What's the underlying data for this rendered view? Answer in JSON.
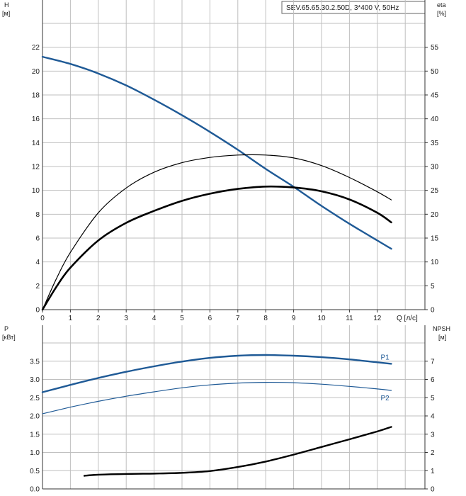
{
  "header": {
    "model_label": "SEV.65.65.30.2.50D, 3*400 V, 50Hz"
  },
  "colors": {
    "blue": "#1f5a96",
    "black": "#000000",
    "grid": "#bfbfbf",
    "axis": "#333333"
  },
  "chart_data": [
    {
      "type": "line",
      "name": "head-efficiency",
      "x_axis": {
        "label": "Q [л/с]",
        "range": [
          0,
          12.5
        ],
        "ticks": [
          0,
          1,
          2,
          3,
          4,
          5,
          6,
          7,
          8,
          9,
          10,
          11,
          12
        ]
      },
      "y_left": {
        "label": "H",
        "unit": "[м]",
        "range": [
          0,
          24
        ],
        "ticks": [
          0,
          2,
          4,
          6,
          8,
          10,
          12,
          14,
          16,
          18,
          20,
          22
        ]
      },
      "y_right": {
        "label": "eta",
        "unit": "[%]",
        "range": [
          0,
          60
        ],
        "ticks": [
          0,
          5,
          10,
          15,
          20,
          25,
          30,
          35,
          40,
          45,
          50,
          55
        ]
      },
      "grid": true,
      "series": [
        {
          "id": "H",
          "axis": "left",
          "color": "#1f5a96",
          "width": 2.4,
          "x": [
            0,
            1,
            2,
            3,
            4,
            5,
            6,
            7,
            8,
            9,
            10,
            11,
            12,
            12.5
          ],
          "y": [
            21.2,
            20.6,
            19.8,
            18.8,
            17.6,
            16.3,
            14.9,
            13.4,
            11.8,
            10.3,
            8.7,
            7.2,
            5.8,
            5.1
          ]
        },
        {
          "id": "eta-thin",
          "axis": "right",
          "color": "#000000",
          "width": 1.2,
          "x": [
            0,
            0.5,
            1,
            2,
            3,
            4,
            5,
            6,
            7,
            8,
            9,
            10,
            11,
            12,
            12.5
          ],
          "y": [
            0,
            6.5,
            12.0,
            20.3,
            25.5,
            28.8,
            30.8,
            31.9,
            32.4,
            32.4,
            31.8,
            30.2,
            27.7,
            24.7,
            23.0
          ]
        },
        {
          "id": "eta-thick",
          "axis": "right",
          "color": "#000000",
          "width": 2.6,
          "x": [
            0,
            0.5,
            1,
            2,
            3,
            4,
            5,
            6,
            7,
            8,
            9,
            10,
            11,
            12,
            12.5
          ],
          "y": [
            0,
            4.8,
            8.8,
            14.5,
            18.2,
            20.7,
            22.8,
            24.3,
            25.3,
            25.8,
            25.6,
            24.8,
            23.1,
            20.3,
            18.3
          ]
        }
      ]
    },
    {
      "type": "line",
      "name": "power-npsh",
      "x_axis": {
        "range": [
          0,
          12.5
        ]
      },
      "y_left": {
        "label": "P",
        "unit": "[кВт]",
        "range": [
          0,
          4.0
        ],
        "ticks": [
          "0.0",
          "0.5",
          "1.0",
          "1.5",
          "2.0",
          "2.5",
          "3.0",
          "3.5"
        ]
      },
      "y_right": {
        "label": "NPSH",
        "unit": "[м]",
        "range": [
          0,
          8
        ],
        "ticks": [
          0,
          1,
          2,
          3,
          4,
          5,
          6,
          7
        ]
      },
      "grid": true,
      "series": [
        {
          "id": "P1",
          "name": "P1",
          "axis": "left",
          "color": "#1f5a96",
          "width": 2.4,
          "x": [
            0,
            1,
            2,
            3,
            4,
            5,
            6,
            7,
            8,
            9,
            10,
            11,
            12,
            12.5
          ],
          "y": [
            2.65,
            2.85,
            3.04,
            3.21,
            3.36,
            3.49,
            3.59,
            3.65,
            3.67,
            3.65,
            3.61,
            3.55,
            3.47,
            3.43
          ]
        },
        {
          "id": "P2",
          "name": "P2",
          "axis": "left",
          "color": "#1f5a96",
          "width": 1.2,
          "x": [
            0,
            1,
            2,
            3,
            4,
            5,
            6,
            7,
            8,
            9,
            10,
            11,
            12,
            12.5
          ],
          "y": [
            2.06,
            2.24,
            2.4,
            2.54,
            2.66,
            2.77,
            2.85,
            2.9,
            2.92,
            2.91,
            2.87,
            2.81,
            2.74,
            2.7
          ]
        },
        {
          "id": "NPSH",
          "axis": "right",
          "color": "#000000",
          "width": 2.4,
          "x": [
            1.5,
            2,
            3,
            4,
            5,
            6,
            7,
            8,
            9,
            10,
            11,
            12,
            12.5
          ],
          "y": [
            0.72,
            0.78,
            0.82,
            0.84,
            0.88,
            0.98,
            1.2,
            1.5,
            1.88,
            2.3,
            2.72,
            3.15,
            3.4
          ]
        }
      ]
    }
  ]
}
